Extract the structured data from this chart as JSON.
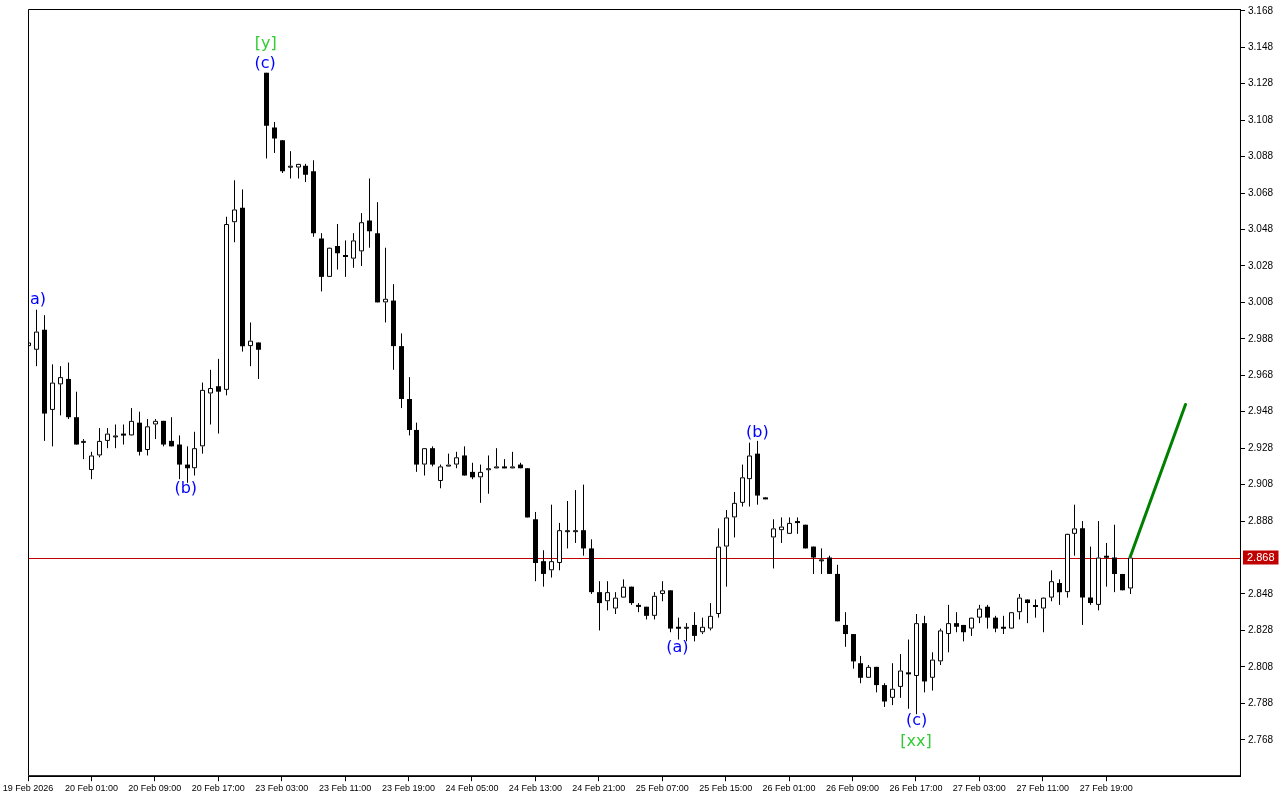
{
  "chart_data": {
    "type": "candlestick",
    "categories": [
      "19 Feb 2026",
      null,
      null,
      null,
      null,
      null,
      null,
      null,
      "20 Feb 01:00",
      null,
      null,
      null,
      null,
      null,
      null,
      null,
      "20 Feb 09:00",
      null,
      null,
      null,
      null,
      null,
      null,
      null,
      "20 Feb 17:00",
      null,
      null,
      null,
      null,
      null,
      null,
      null,
      "23 Feb 03:00",
      null,
      null,
      null,
      null,
      null,
      null,
      null,
      "23 Feb 11:00",
      null,
      null,
      null,
      null,
      null,
      null,
      null,
      "23 Feb 19:00",
      null,
      null,
      null,
      null,
      null,
      null,
      null,
      "24 Feb 05:00",
      null,
      null,
      null,
      null,
      null,
      null,
      null,
      "24 Feb 13:00",
      null,
      null,
      null,
      null,
      null,
      null,
      null,
      "24 Feb 21:00",
      null,
      null,
      null,
      null,
      null,
      null,
      null,
      "25 Feb 07:00",
      null,
      null,
      null,
      null,
      null,
      null,
      null,
      "25 Feb 15:00",
      null,
      null,
      null,
      null,
      null,
      null,
      null,
      "26 Feb 01:00",
      null,
      null,
      null,
      null,
      null,
      null,
      null,
      "26 Feb 09:00",
      null,
      null,
      null,
      null,
      null,
      null,
      null,
      "26 Feb 17:00",
      null,
      null,
      null,
      null,
      null,
      null,
      null,
      "27 Feb 03:00",
      null,
      null,
      null,
      null,
      null,
      null,
      null,
      "27 Feb 11:00",
      null,
      null,
      null,
      null,
      null,
      null,
      null,
      "27 Feb 19:00",
      null,
      null,
      null,
      null,
      null,
      null,
      null,
      null,
      null,
      null,
      null,
      null,
      null,
      null,
      null,
      null,
      null
    ],
    "ohlc": [
      [
        2.984,
        2.988,
        2.982,
        2.986
      ],
      [
        2.982,
        3.004,
        2.973,
        2.992
      ],
      [
        2.993,
        3.001,
        2.932,
        2.947
      ],
      [
        2.949,
        2.974,
        2.929,
        2.964
      ],
      [
        2.963,
        2.973,
        2.946,
        2.967
      ],
      [
        2.966,
        2.975,
        2.944,
        2.945
      ],
      [
        2.945,
        2.959,
        2.93,
        2.93
      ],
      [
        2.931,
        2.933,
        2.922,
        2.932
      ],
      [
        2.916,
        2.926,
        2.911,
        2.924
      ],
      [
        2.924,
        2.939,
        2.923,
        2.932
      ],
      [
        2.932,
        2.939,
        2.928,
        2.936
      ],
      [
        2.935,
        2.941,
        2.928,
        2.935
      ],
      [
        2.936,
        2.941,
        2.93,
        2.935
      ],
      [
        2.935,
        2.95,
        2.935,
        2.943
      ],
      [
        2.942,
        2.948,
        2.924,
        2.926
      ],
      [
        2.927,
        2.944,
        2.924,
        2.94
      ],
      [
        2.941,
        2.944,
        2.933,
        2.943
      ],
      [
        2.943,
        2.943,
        2.929,
        2.93
      ],
      [
        2.932,
        2.945,
        2.929,
        2.929
      ],
      [
        2.93,
        2.935,
        2.911,
        2.919
      ],
      [
        2.919,
        2.929,
        2.909,
        2.917
      ],
      [
        2.917,
        2.937,
        2.913,
        2.928
      ],
      [
        2.929,
        2.964,
        2.925,
        2.96
      ],
      [
        2.958,
        2.971,
        2.941,
        2.961
      ],
      [
        2.962,
        2.977,
        2.936,
        2.959
      ],
      [
        2.96,
        3.055,
        2.957,
        3.051
      ],
      [
        3.052,
        3.075,
        3.041,
        3.059
      ],
      [
        3.06,
        3.07,
        2.981,
        2.984
      ],
      [
        2.984,
        2.997,
        2.973,
        2.987
      ],
      [
        2.986,
        2.986,
        2.966,
        2.982
      ],
      [
        3.134,
        3.134,
        3.087,
        3.105
      ],
      [
        3.104,
        3.107,
        3.09,
        3.098
      ],
      [
        3.097,
        3.097,
        3.079,
        3.08
      ],
      [
        3.082,
        3.091,
        3.076,
        3.083
      ],
      [
        3.082,
        3.084,
        3.076,
        3.084
      ],
      [
        3.083,
        3.084,
        3.074,
        3.078
      ],
      [
        3.08,
        3.086,
        3.044,
        3.046
      ],
      [
        3.043,
        3.046,
        3.014,
        3.022
      ],
      [
        3.022,
        3.038,
        3.022,
        3.038
      ],
      [
        3.039,
        3.051,
        3.026,
        3.035
      ],
      [
        3.034,
        3.042,
        3.022,
        3.033
      ],
      [
        3.032,
        3.046,
        3.027,
        3.042
      ],
      [
        3.036,
        3.057,
        3.028,
        3.052
      ],
      [
        3.053,
        3.076,
        3.038,
        3.047
      ],
      [
        3.046,
        3.063,
        3.008,
        3.008
      ],
      [
        3.008,
        3.038,
        2.997,
        3.01
      ],
      [
        3.009,
        3.018,
        2.971,
        2.984
      ],
      [
        2.984,
        2.991,
        2.95,
        2.955
      ],
      [
        2.955,
        2.967,
        2.935,
        2.938
      ],
      [
        2.938,
        2.942,
        2.915,
        2.919
      ],
      [
        2.919,
        2.928,
        2.913,
        2.928
      ],
      [
        2.928,
        2.929,
        2.918,
        2.919
      ],
      [
        2.91,
        2.919,
        2.906,
        2.918
      ],
      [
        2.919,
        2.925,
        2.919,
        2.919
      ],
      [
        2.919,
        2.926,
        2.917,
        2.923
      ],
      [
        2.924,
        2.929,
        2.913,
        2.913
      ],
      [
        2.915,
        2.92,
        2.911,
        2.912
      ],
      [
        2.912,
        2.919,
        2.898,
        2.915
      ],
      [
        2.916,
        2.924,
        2.903,
        2.917
      ],
      [
        2.917,
        2.928,
        2.917,
        2.918
      ],
      [
        2.918,
        2.922,
        2.917,
        2.917
      ],
      [
        2.917,
        2.926,
        2.917,
        2.918
      ],
      [
        2.919,
        2.92,
        2.917,
        2.917
      ],
      [
        2.917,
        2.917,
        2.89,
        2.89
      ],
      [
        2.889,
        2.893,
        2.855,
        2.865
      ],
      [
        2.866,
        2.872,
        2.852,
        2.859
      ],
      [
        2.861,
        2.897,
        2.857,
        2.866
      ],
      [
        2.865,
        2.887,
        2.861,
        2.883
      ],
      [
        2.883,
        2.899,
        2.873,
        2.883
      ],
      [
        2.882,
        2.905,
        2.876,
        2.883
      ],
      [
        2.883,
        2.908,
        2.869,
        2.873
      ],
      [
        2.873,
        2.878,
        2.848,
        2.849
      ],
      [
        2.849,
        2.855,
        2.828,
        2.843
      ],
      [
        2.844,
        2.855,
        2.839,
        2.849
      ],
      [
        2.84,
        2.849,
        2.837,
        2.846
      ],
      [
        2.846,
        2.856,
        2.846,
        2.852
      ],
      [
        2.852,
        2.852,
        2.842,
        2.843
      ],
      [
        2.842,
        2.843,
        2.838,
        2.841
      ],
      [
        2.841,
        2.841,
        2.834,
        2.836
      ],
      [
        2.836,
        2.849,
        2.834,
        2.847
      ],
      [
        2.848,
        2.855,
        2.844,
        2.85
      ],
      [
        2.85,
        2.85,
        2.827,
        2.829
      ],
      [
        2.83,
        2.835,
        2.823,
        2.829
      ],
      [
        2.83,
        2.832,
        2.822,
        2.83
      ],
      [
        2.831,
        2.838,
        2.822,
        2.825
      ],
      [
        2.827,
        2.835,
        2.826,
        2.83
      ],
      [
        2.829,
        2.843,
        2.828,
        2.836
      ],
      [
        2.837,
        2.884,
        2.835,
        2.874
      ],
      [
        2.874,
        2.894,
        2.852,
        2.89
      ],
      [
        2.89,
        2.904,
        2.879,
        2.898
      ],
      [
        2.898,
        2.919,
        2.896,
        2.912
      ],
      [
        2.911,
        2.931,
        2.896,
        2.924
      ],
      [
        2.925,
        2.932,
        2.897,
        2.902
      ],
      [
        2.901,
        2.901,
        2.9,
        2.9
      ],
      [
        2.879,
        2.889,
        2.862,
        2.884
      ],
      [
        2.883,
        2.89,
        2.876,
        2.885
      ],
      [
        2.881,
        2.89,
        2.881,
        2.887
      ],
      [
        2.888,
        2.89,
        2.881,
        2.887
      ],
      [
        2.886,
        2.886,
        2.873,
        2.873
      ],
      [
        2.874,
        2.874,
        2.859,
        2.868
      ],
      [
        2.867,
        2.873,
        2.859,
        2.867
      ],
      [
        2.868,
        2.869,
        2.859,
        2.859
      ],
      [
        2.859,
        2.864,
        2.833,
        2.833
      ],
      [
        2.831,
        2.838,
        2.819,
        2.826
      ],
      [
        2.826,
        2.826,
        2.807,
        2.811
      ],
      [
        2.81,
        2.814,
        2.799,
        2.802
      ],
      [
        2.802,
        2.809,
        2.802,
        2.808
      ],
      [
        2.808,
        2.808,
        2.794,
        2.798
      ],
      [
        2.798,
        2.799,
        2.786,
        2.789
      ],
      [
        2.791,
        2.81,
        2.787,
        2.796
      ],
      [
        2.797,
        2.815,
        2.791,
        2.806
      ],
      [
        2.805,
        2.823,
        2.785,
        2.804
      ],
      [
        2.803,
        2.837,
        2.782,
        2.832
      ],
      [
        2.832,
        2.836,
        2.794,
        2.8
      ],
      [
        2.802,
        2.816,
        2.795,
        2.812
      ],
      [
        2.811,
        2.829,
        2.809,
        2.828
      ],
      [
        2.826,
        2.842,
        2.816,
        2.832
      ],
      [
        2.832,
        2.838,
        2.827,
        2.83
      ],
      [
        2.831,
        2.831,
        2.822,
        2.827
      ],
      [
        2.829,
        2.835,
        2.825,
        2.835
      ],
      [
        2.835,
        2.842,
        2.832,
        2.84
      ],
      [
        2.841,
        2.842,
        2.829,
        2.835
      ],
      [
        2.835,
        2.836,
        2.827,
        2.829
      ],
      [
        2.83,
        2.836,
        2.826,
        2.829
      ],
      [
        2.829,
        2.838,
        2.829,
        2.838
      ],
      [
        2.838,
        2.848,
        2.834,
        2.846
      ],
      [
        2.845,
        2.845,
        2.832,
        2.843
      ],
      [
        2.842,
        2.845,
        2.835,
        2.841
      ],
      [
        2.84,
        2.846,
        2.827,
        2.846
      ],
      [
        2.846,
        2.861,
        2.844,
        2.855
      ],
      [
        2.854,
        2.856,
        2.842,
        2.849
      ],
      [
        2.849,
        2.881,
        2.846,
        2.881
      ],
      [
        2.881,
        2.897,
        2.869,
        2.884
      ],
      [
        2.884,
        2.888,
        2.831,
        2.846
      ],
      [
        2.846,
        2.874,
        2.842,
        2.843
      ],
      [
        2.842,
        2.888,
        2.839,
        2.868
      ],
      [
        2.869,
        2.876,
        2.852,
        2.868
      ],
      [
        2.868,
        2.886,
        2.849,
        2.859
      ],
      [
        2.859,
        2.859,
        2.85,
        2.85
      ],
      [
        2.851,
        2.868,
        2.848,
        2.868
      ],
      null,
      null,
      null,
      null,
      null,
      null,
      null,
      null,
      null,
      null,
      null,
      null,
      null,
      null
    ],
    "series": [
      {
        "type": "line",
        "values": [
          null,
          null,
          null,
          null,
          null,
          null,
          null,
          null,
          null,
          null,
          null,
          null,
          null,
          null,
          null,
          null,
          null,
          null,
          null,
          null,
          null,
          null,
          null,
          null,
          null,
          null,
          null,
          null,
          null,
          null,
          null,
          null,
          null,
          null,
          null,
          null,
          null,
          null,
          null,
          null,
          null,
          null,
          null,
          null,
          null,
          null,
          null,
          null,
          null,
          null,
          null,
          null,
          null,
          null,
          null,
          null,
          null,
          null,
          null,
          null,
          null,
          null,
          null,
          null,
          null,
          null,
          null,
          null,
          null,
          null,
          null,
          null,
          null,
          null,
          null,
          null,
          null,
          null,
          null,
          null,
          null,
          null,
          null,
          null,
          null,
          null,
          null,
          null,
          null,
          null,
          null,
          null,
          null,
          null,
          null,
          null,
          null,
          null,
          null,
          null,
          null,
          null,
          null,
          null,
          null,
          null,
          null,
          null,
          null,
          null,
          null,
          null,
          null,
          null,
          null,
          null,
          null,
          null,
          null,
          null,
          null,
          null,
          null,
          null,
          null,
          null,
          null,
          null,
          null,
          null,
          null,
          null,
          null,
          null,
          null,
          null,
          null,
          null,
          null,
          2.868,
          null,
          null,
          null,
          null,
          null,
          null,
          2.952,
          null,
          null,
          null,
          null,
          null,
          null,
          null
        ],
        "color": "#008000"
      }
    ],
    "ylim": [
      2.748,
      3.169
    ],
    "yticks": [
      2.768,
      2.788,
      2.808,
      2.828,
      2.848,
      2.888,
      2.908,
      2.928,
      2.948,
      2.968,
      2.988,
      3.008,
      3.028,
      3.048,
      3.068,
      3.088,
      3.108,
      3.128,
      3.148,
      3.168
    ],
    "ref_lines": [
      {
        "axis": "y",
        "value": 2.868,
        "label": "2.868",
        "color": "#c00000"
      }
    ],
    "annotations": [
      "a)",
      "(b)",
      "[y]",
      "(c)",
      "(a)",
      "(b)",
      "(c)",
      "[xx]"
    ],
    "grid": false,
    "legend": false
  }
}
